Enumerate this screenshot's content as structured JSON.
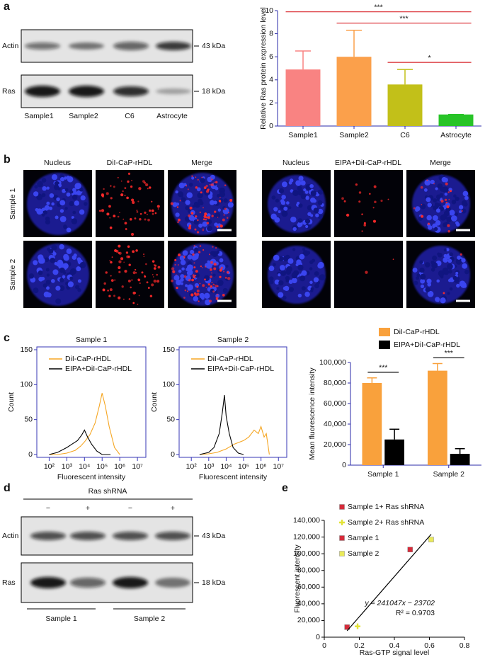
{
  "panel_labels": [
    "a",
    "b",
    "c",
    "d",
    "e"
  ],
  "blot_a": {
    "rows": [
      {
        "label": "Actin",
        "size": "43 kDa"
      },
      {
        "label": "Ras",
        "size": "18 kDa"
      }
    ],
    "lanes": [
      "Sample1",
      "Sample2",
      "C6",
      "Astrocyte"
    ]
  },
  "microscopy": {
    "left_columns": [
      "Nucleus",
      "DiI-CaP-rHDL",
      "Merge"
    ],
    "right_columns": [
      "Nucleus",
      "EIPA+DiI-CaP-rHDL",
      "Merge"
    ],
    "rows": [
      "Sample 1",
      "Sample 2"
    ]
  },
  "blot_d": {
    "header": "Ras shRNA",
    "lanes": [
      "−",
      "+",
      "−",
      "+"
    ],
    "rows": [
      {
        "label": "Actin",
        "size": "43 kDa"
      },
      {
        "label": "Ras",
        "size": "18 kDa"
      }
    ],
    "groups": [
      "Sample 1",
      "Sample 2"
    ]
  },
  "chart_data": [
    {
      "type": "bar",
      "ylabel": "Relative Ras protein expression level",
      "categories": [
        "Sample1",
        "Sample2",
        "C6",
        "Astrocyte"
      ],
      "values": [
        4.9,
        6.0,
        3.6,
        1.0
      ],
      "errors": [
        1.6,
        2.3,
        1.3,
        0
      ],
      "colors": [
        "#f98382",
        "#fba04b",
        "#c2c019",
        "#27c427"
      ],
      "ylim": [
        0,
        10
      ],
      "yticks": [
        0,
        2,
        4,
        6,
        8,
        10
      ],
      "axis_color": "#2a2aa8",
      "significance": [
        {
          "between": [
            0,
            3
          ],
          "label": "***"
        },
        {
          "between": [
            1,
            3
          ],
          "label": "***"
        },
        {
          "between": [
            2,
            3
          ],
          "label": "*"
        }
      ],
      "significance_color": "#d9262b"
    },
    {
      "type": "line",
      "title": "Sample 1",
      "xlabel": "Fluorescent intensity",
      "ylabel": "Count",
      "xscale": "log",
      "xlim": [
        20,
        30000000
      ],
      "xticks": [
        {
          "value": 100,
          "label": "10²"
        },
        {
          "value": 1000,
          "label": "10³"
        },
        {
          "value": 10000,
          "label": "10⁴"
        },
        {
          "value": 100000,
          "label": "10⁵"
        },
        {
          "value": 1000000,
          "label": "10⁶"
        },
        {
          "value": 10000000,
          "label": "10⁷"
        }
      ],
      "ylim": [
        0,
        150
      ],
      "yticks": [
        0,
        50,
        100,
        150
      ],
      "frame_color": "#3535b5",
      "legend": "upper left",
      "series": [
        {
          "name": "DiI-CaP-rHDL",
          "color": "#f5a623",
          "x": [
            100,
            300,
            1000,
            3000,
            6000,
            10000,
            20000,
            40000,
            70000,
            100000,
            150000,
            250000,
            500000,
            1000000
          ],
          "values": [
            0,
            0,
            2,
            6,
            12,
            18,
            28,
            45,
            70,
            88,
            70,
            40,
            10,
            0
          ]
        },
        {
          "name": "EIPA+DiI-CaP-rHDL",
          "color": "#000000",
          "x": [
            100,
            300,
            1000,
            2000,
            4000,
            7000,
            10000,
            15000,
            25000,
            50000,
            100000,
            300000
          ],
          "values": [
            0,
            3,
            10,
            15,
            20,
            28,
            35,
            25,
            15,
            5,
            0,
            0
          ]
        }
      ]
    },
    {
      "type": "line",
      "title": "Sample 2",
      "xlabel": "Fluorescent intensity",
      "ylabel": "Count",
      "xscale": "log",
      "xlim": [
        20,
        30000000
      ],
      "xticks": [
        {
          "value": 100,
          "label": "10²"
        },
        {
          "value": 1000,
          "label": "10³"
        },
        {
          "value": 10000,
          "label": "10⁴"
        },
        {
          "value": 100000,
          "label": "10⁵"
        },
        {
          "value": 1000000,
          "label": "10⁶"
        },
        {
          "value": 10000000,
          "label": "10⁷"
        }
      ],
      "ylim": [
        0,
        150
      ],
      "yticks": [
        0,
        50,
        100,
        150
      ],
      "frame_color": "#3535b5",
      "legend": "upper left",
      "series": [
        {
          "name": "DiI-CaP-rHDL",
          "color": "#f5a623",
          "x": [
            300,
            1000,
            3000,
            10000,
            30000,
            100000,
            200000,
            400000,
            700000,
            1000000,
            1500000,
            2000000,
            3000000
          ],
          "values": [
            0,
            1,
            3,
            8,
            15,
            20,
            25,
            35,
            30,
            40,
            25,
            30,
            0
          ]
        },
        {
          "name": "EIPA+DiI-CaP-rHDL",
          "color": "#000000",
          "x": [
            300,
            1000,
            2000,
            4000,
            6000,
            8000,
            10000,
            15000,
            25000,
            50000,
            100000
          ],
          "values": [
            0,
            3,
            10,
            30,
            60,
            85,
            55,
            30,
            10,
            2,
            0
          ]
        }
      ]
    },
    {
      "type": "bar",
      "ylabel": "Mean fluorescence intensity",
      "categories": [
        "Sample 1",
        "Sample 2"
      ],
      "series": [
        {
          "name": "DiI-CaP-rHDL",
          "color": "#f9a13c",
          "values": [
            80000,
            92000
          ],
          "errors": [
            5000,
            7000
          ]
        },
        {
          "name": "EIPA+DiI-CaP-rHDL",
          "color": "#000000",
          "values": [
            25000,
            11000
          ],
          "errors": [
            10000,
            5000
          ]
        }
      ],
      "ylim": [
        0,
        100000
      ],
      "yticks": [
        0,
        {
          "value": 20000,
          "label": "20,000"
        },
        {
          "value": 40000,
          "label": "40,000"
        },
        {
          "value": 60000,
          "label": "60,000"
        },
        {
          "value": 80000,
          "label": "80,000"
        },
        {
          "value": 100000,
          "label": "100,000"
        }
      ],
      "axis_color": "#2a2aa8",
      "legend": "top",
      "significance": [
        {
          "category": 0,
          "label": "***"
        },
        {
          "category": 1,
          "label": "***"
        }
      ],
      "significance_color": "#000000"
    },
    {
      "type": "scatter",
      "xlabel": "Ras-GTP signal level",
      "ylabel": "Fluorescent intensity",
      "xlim": [
        0,
        0.8
      ],
      "xticks": [
        0,
        0.2,
        0.4,
        0.6,
        0.8
      ],
      "ylim": [
        0,
        140000
      ],
      "yticks": [
        0,
        {
          "value": 20000,
          "label": "20,000"
        },
        {
          "value": 40000,
          "label": "40,000"
        },
        {
          "value": 60000,
          "label": "60,000"
        },
        {
          "value": 80000,
          "label": "80,000"
        },
        {
          "value": 100000,
          "label": "100,000"
        },
        {
          "value": 120000,
          "label": "120,000"
        },
        {
          "value": 140000,
          "label": "140,000"
        }
      ],
      "legend": "upper left",
      "series": [
        {
          "name": "Sample 1+ Ras shRNA",
          "color": "#d62b3a",
          "marker": "square",
          "x": [
            0.13
          ],
          "values": [
            12000
          ]
        },
        {
          "name": "Sample 2+ Ras shRNA",
          "color": "#e3e336",
          "marker": "plus",
          "x": [
            0.19
          ],
          "values": [
            13000
          ]
        },
        {
          "name": "Sample 1",
          "color": "#d62b3a",
          "marker": "square",
          "x": [
            0.49
          ],
          "values": [
            105000
          ]
        },
        {
          "name": "Sample 2",
          "color": "#eaea5a",
          "marker": "square",
          "x": [
            0.61
          ],
          "values": [
            117000
          ]
        }
      ],
      "fit": {
        "slope": 241047,
        "intercept": -23702
      },
      "annotations": [
        "y = 241047x − 23702",
        "R² = 0.9703"
      ]
    }
  ]
}
